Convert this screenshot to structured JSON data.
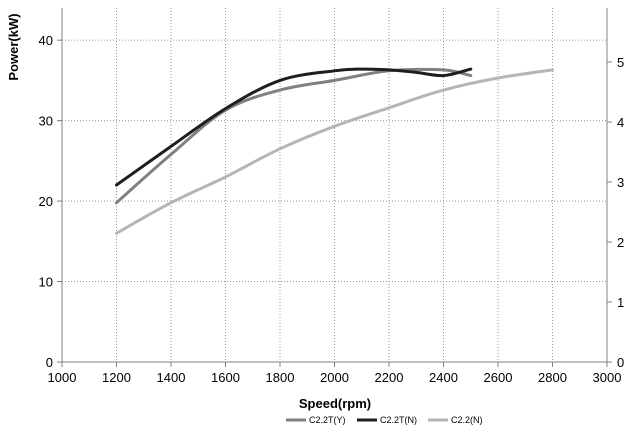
{
  "chart_data": {
    "type": "line",
    "xlabel": "Speed(rpm)",
    "ylabel": "Power(kW)",
    "xlim": [
      1000,
      3000
    ],
    "x_ticks": [
      "1000",
      "1200",
      "1400",
      "1600",
      "1800",
      "2000",
      "2200",
      "2400",
      "2600",
      "2800",
      "3000"
    ],
    "ylim": [
      0,
      44
    ],
    "y_ticks": [
      "0",
      "10",
      "20",
      "30",
      "40"
    ],
    "y2_ticks": [
      "0",
      "1",
      "2",
      "3",
      "4",
      "5"
    ],
    "grid": true,
    "legend_position": "bottom",
    "series": [
      {
        "name": "C2.2T(Y)",
        "color": "#808080",
        "points": [
          [
            1200,
            19.8
          ],
          [
            1400,
            25.8
          ],
          [
            1600,
            31.3
          ],
          [
            1800,
            33.8
          ],
          [
            2000,
            35.0
          ],
          [
            2200,
            36.2
          ],
          [
            2400,
            36.3
          ],
          [
            2500,
            35.6
          ]
        ]
      },
      {
        "name": "C2.2T(N)",
        "color": "#1e1e1e",
        "points": [
          [
            1200,
            22.0
          ],
          [
            1400,
            26.8
          ],
          [
            1600,
            31.5
          ],
          [
            1800,
            35.0
          ],
          [
            2000,
            36.2
          ],
          [
            2100,
            36.4
          ],
          [
            2200,
            36.3
          ],
          [
            2300,
            36.0
          ],
          [
            2400,
            35.6
          ],
          [
            2500,
            36.4
          ]
        ]
      },
      {
        "name": "C2.2(N)",
        "color": "#b5b5b5",
        "points": [
          [
            1200,
            16.0
          ],
          [
            1400,
            19.8
          ],
          [
            1600,
            23.0
          ],
          [
            1800,
            26.5
          ],
          [
            2000,
            29.3
          ],
          [
            2200,
            31.6
          ],
          [
            2400,
            33.8
          ],
          [
            2600,
            35.3
          ],
          [
            2800,
            36.3
          ]
        ]
      }
    ]
  }
}
